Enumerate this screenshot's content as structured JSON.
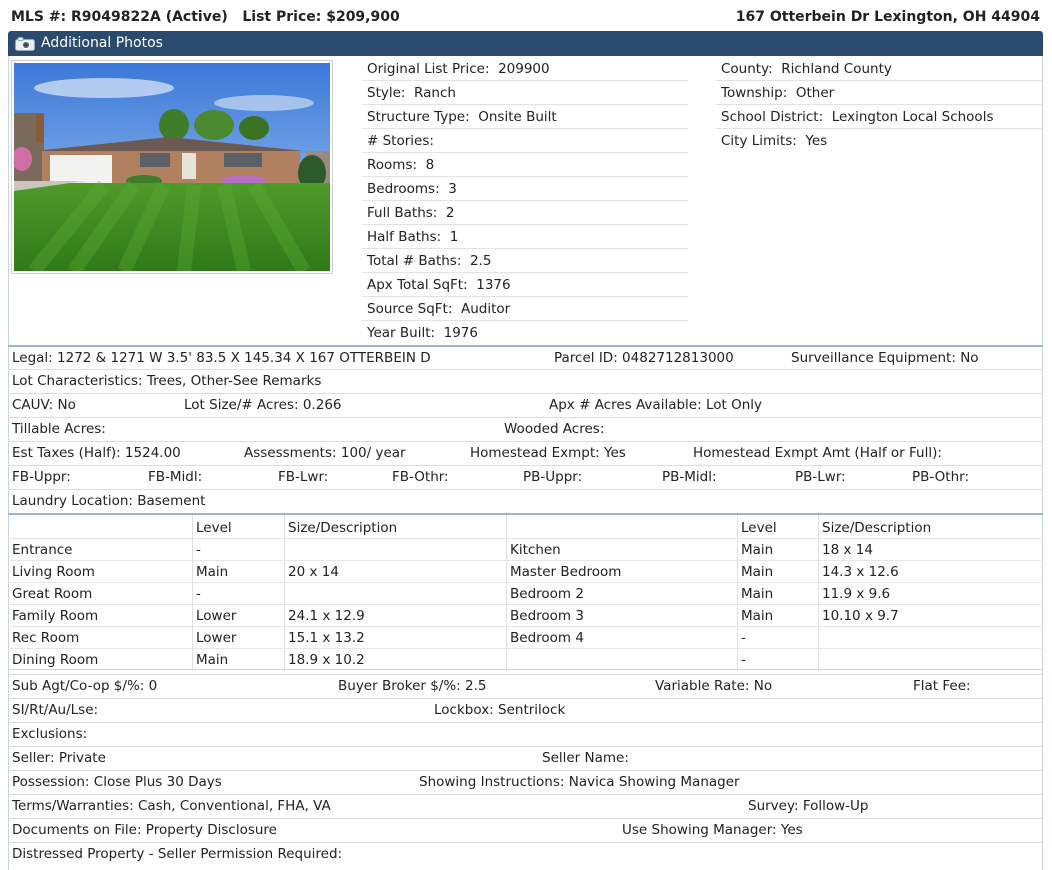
{
  "header": {
    "mls_line": "MLS #: R9049822A (Active)   List Price: $209,900",
    "address": "167 Otterbein Dr Lexington, OH 44904"
  },
  "photos_bar": {
    "label": "Additional Photos",
    "icon": "camera-icon"
  },
  "summary_left": [
    "Original List Price:  209900",
    "Style:  Ranch",
    "Structure Type:  Onsite Built",
    "# Stories:",
    "Rooms:  8",
    "Bedrooms:  3",
    "Full Baths:  2",
    "Half Baths:  1",
    "Total # Baths:  2.5",
    "Apx Total SqFt:  1376",
    "Source SqFt:  Auditor",
    "Year Built:  1976"
  ],
  "summary_right": [
    "County:  Richland County",
    "Township:  Other",
    "School District:  Lexington Local Schools",
    "City Limits:  Yes"
  ],
  "detail_rows_top": [
    [
      "Legal: 1272 & 1271 W 3.5' 83.5 X 145.34 X 167 OTTERBEIN D",
      "Parcel ID: 0482712813000",
      "Surveillance Equipment: No"
    ],
    [
      "Lot Characteristics: Trees, Other-See Remarks"
    ],
    [
      "CAUV: No",
      "Lot Size/# Acres: 0.266",
      "Apx # Acres Available: Lot Only"
    ],
    [
      "Tillable Acres:",
      "Wooded Acres:"
    ],
    [
      "Est Taxes (Half): 1524.00",
      "Assessments: 100/ year",
      "Homestead Exmpt: Yes",
      "Homestead Exmpt Amt (Half or Full):"
    ],
    [
      "FB-Uppr:",
      "FB-Midl:",
      "FB-Lwr:",
      "FB-Othr:",
      "PB-Uppr:",
      "PB-Midl:",
      "PB-Lwr:",
      "PB-Othr:"
    ],
    [
      "Laundry Location: Basement"
    ]
  ],
  "rooms": {
    "headers": [
      "",
      "Level",
      "Size/Description",
      "",
      "Level",
      "Size/Description"
    ],
    "rows": [
      [
        "Entrance",
        "-",
        "",
        "Kitchen",
        "Main",
        "18 x 14"
      ],
      [
        "Living Room",
        "Main",
        "20 x 14",
        "Master Bedroom",
        "Main",
        "14.3 x 12.6"
      ],
      [
        "Great Room",
        "-",
        "",
        "Bedroom 2",
        "Main",
        "11.9 x 9.6"
      ],
      [
        "Family Room",
        "Lower",
        "24.1 x 12.9",
        "Bedroom 3",
        "Main",
        "10.10 x 9.7"
      ],
      [
        "Rec Room",
        "Lower",
        "15.1 x 13.2",
        "Bedroom 4",
        "-",
        ""
      ],
      [
        "Dining Room",
        "Main",
        "18.9 x 10.2",
        "",
        "-",
        ""
      ]
    ]
  },
  "detail_rows_bottom": [
    [
      "Sub Agt/Co-op $/%: 0",
      "Buyer Broker $/%: 2.5",
      "Variable Rate: No",
      "Flat Fee:"
    ],
    [
      "SI/Rt/Au/Lse:",
      "Lockbox: Sentrilock"
    ],
    [
      "Exclusions:"
    ],
    [
      "Seller: Private",
      "Seller Name:"
    ],
    [
      "Possession: Close Plus 30 Days",
      "Showing Instructions: Navica Showing Manager"
    ],
    [
      "Terms/Warranties: Cash, Conventional, FHA, VA",
      "Survey: Follow-Up"
    ],
    [
      "Documents on File: Property Disclosure",
      "Use Showing Manager: Yes"
    ],
    [
      "Distressed Property - Seller Permission Required:"
    ]
  ]
}
